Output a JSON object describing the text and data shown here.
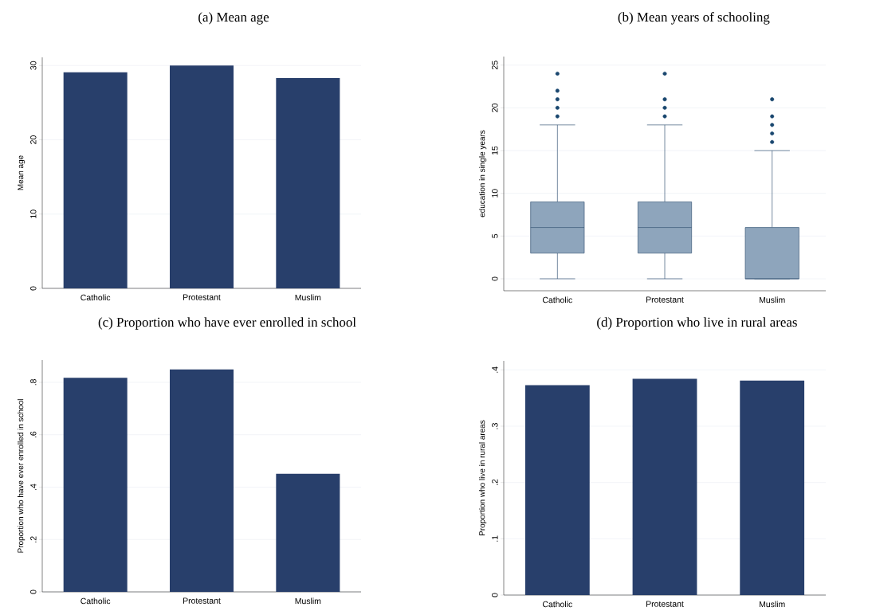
{
  "chart_data": [
    {
      "type": "bar",
      "title": "(a) Mean age",
      "ylabel": "Mean age",
      "categories": [
        "Catholic",
        "Protestant",
        "Muslim"
      ],
      "values": [
        29.1,
        30.0,
        28.3
      ],
      "color": "#283f6b",
      "ylim": [
        0,
        31.1
      ],
      "yticks": [
        0,
        10,
        20,
        30
      ],
      "grid": "y"
    },
    {
      "type": "box",
      "title": "(b) Mean years of schooling",
      "ylabel": "education in single years",
      "categories": [
        "Catholic",
        "Protestant",
        "Muslim"
      ],
      "boxes": [
        {
          "low": 0,
          "q1": 3,
          "median": 6,
          "q3": 9,
          "high": 18,
          "outliers": [
            19,
            20,
            21,
            22,
            24
          ]
        },
        {
          "low": 0,
          "q1": 3,
          "median": 6,
          "q3": 9,
          "high": 18,
          "outliers": [
            19,
            20,
            21,
            24
          ]
        },
        {
          "low": 0,
          "q1": 0,
          "median": 0,
          "q3": 6,
          "high": 15,
          "outliers": [
            16,
            17,
            18,
            19,
            21
          ]
        }
      ],
      "color": "#8ea5bc",
      "ylim": [
        -1.4,
        26
      ],
      "yticks": [
        0,
        5,
        10,
        15,
        20,
        25
      ],
      "grid": "y"
    },
    {
      "type": "bar",
      "title": "(c) Proportion who have ever enrolled in school",
      "ylabel": "Proportion who have ever enrolled in school",
      "categories": [
        "Catholic",
        "Protestant",
        "Muslim"
      ],
      "values": [
        0.817,
        0.849,
        0.451
      ],
      "color": "#283f6b",
      "ylim": [
        0,
        0.885
      ],
      "yticks": [
        0,
        {
          "value": 0.2,
          "label": ".2"
        },
        {
          "value": 0.4,
          "label": ".4"
        },
        {
          "value": 0.6,
          "label": ".6"
        },
        {
          "value": 0.8,
          "label": ".8"
        }
      ],
      "grid": "y"
    },
    {
      "type": "bar",
      "title": "(d) Proportion who live in rural areas",
      "ylabel": "Proportion who live in rural areas",
      "categories": [
        "Catholic",
        "Protestant",
        "Muslim"
      ],
      "values": [
        0.373,
        0.384,
        0.381
      ],
      "color": "#283f6b",
      "ylim": [
        0,
        0.416
      ],
      "yticks": [
        0,
        {
          "value": 0.1,
          "label": ".1"
        },
        {
          "value": 0.2,
          "label": ".2"
        },
        {
          "value": 0.3,
          "label": ".3"
        },
        {
          "value": 0.4,
          "label": ".4"
        }
      ],
      "grid": "y"
    }
  ]
}
